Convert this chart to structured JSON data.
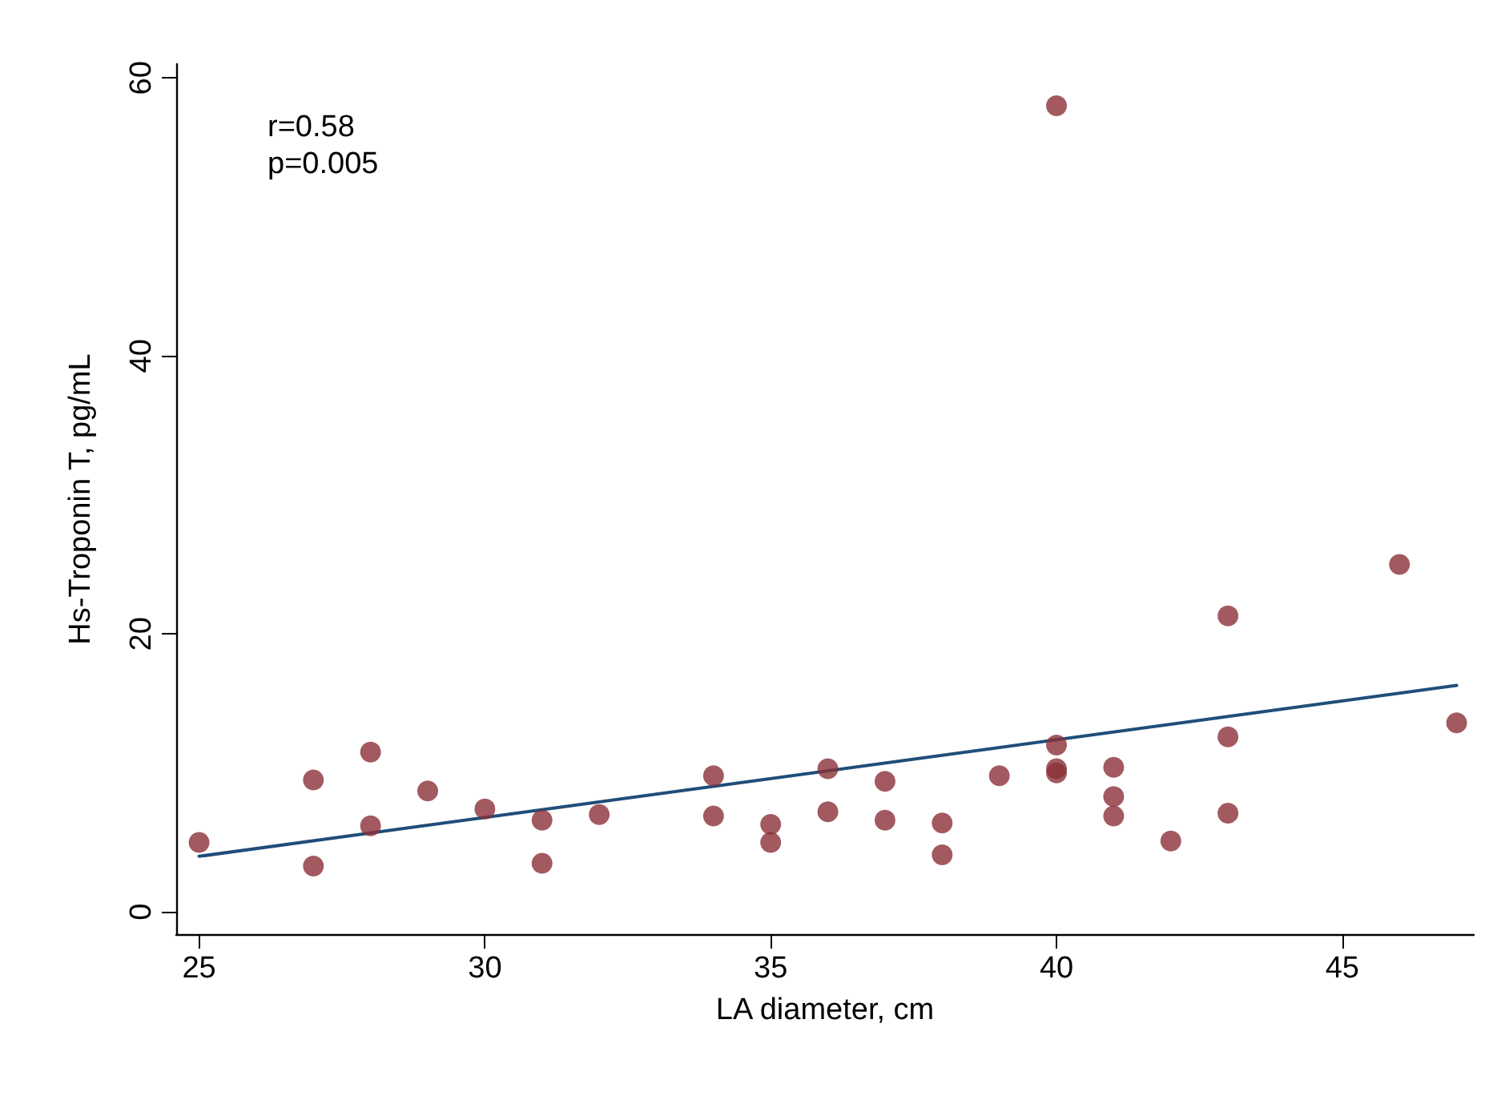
{
  "chart_data": {
    "type": "scatter",
    "xlabel": "LA diameter, cm",
    "ylabel": "Hs-Troponin T, pg/mL",
    "annotations": [
      "r=0.58",
      "p=0.005"
    ],
    "xlim": [
      24.6,
      47.3
    ],
    "ylim": [
      -1.6,
      61
    ],
    "xticks": [
      25,
      30,
      35,
      40,
      45
    ],
    "yticks": [
      0,
      20,
      40,
      60
    ],
    "grid": false,
    "series": [
      {
        "color": "#8b3038",
        "marker": "circle",
        "x": [
          25,
          27,
          27,
          28,
          28,
          29,
          30,
          31,
          31,
          32,
          34,
          34,
          35,
          35,
          36,
          36,
          37,
          37,
          38,
          38,
          39,
          40,
          40,
          40,
          40,
          41,
          41,
          41,
          42,
          43,
          43,
          43,
          46,
          47
        ],
        "values": [
          5.0,
          9.5,
          3.3,
          11.5,
          6.2,
          8.7,
          7.4,
          6.6,
          3.5,
          7.0,
          9.8,
          6.9,
          6.3,
          5.0,
          10.3,
          7.2,
          9.4,
          6.6,
          6.4,
          4.1,
          9.8,
          58,
          12.0,
          10.3,
          10.0,
          10.4,
          8.3,
          6.9,
          5.1,
          21.3,
          12.6,
          7.1,
          25.0,
          13.6
        ]
      },
      {
        "type": "line",
        "color": "#1f4e79",
        "marker": "none",
        "line_style": "solid",
        "x": [
          25,
          47
        ],
        "values": [
          4.0,
          16.3
        ]
      }
    ]
  }
}
